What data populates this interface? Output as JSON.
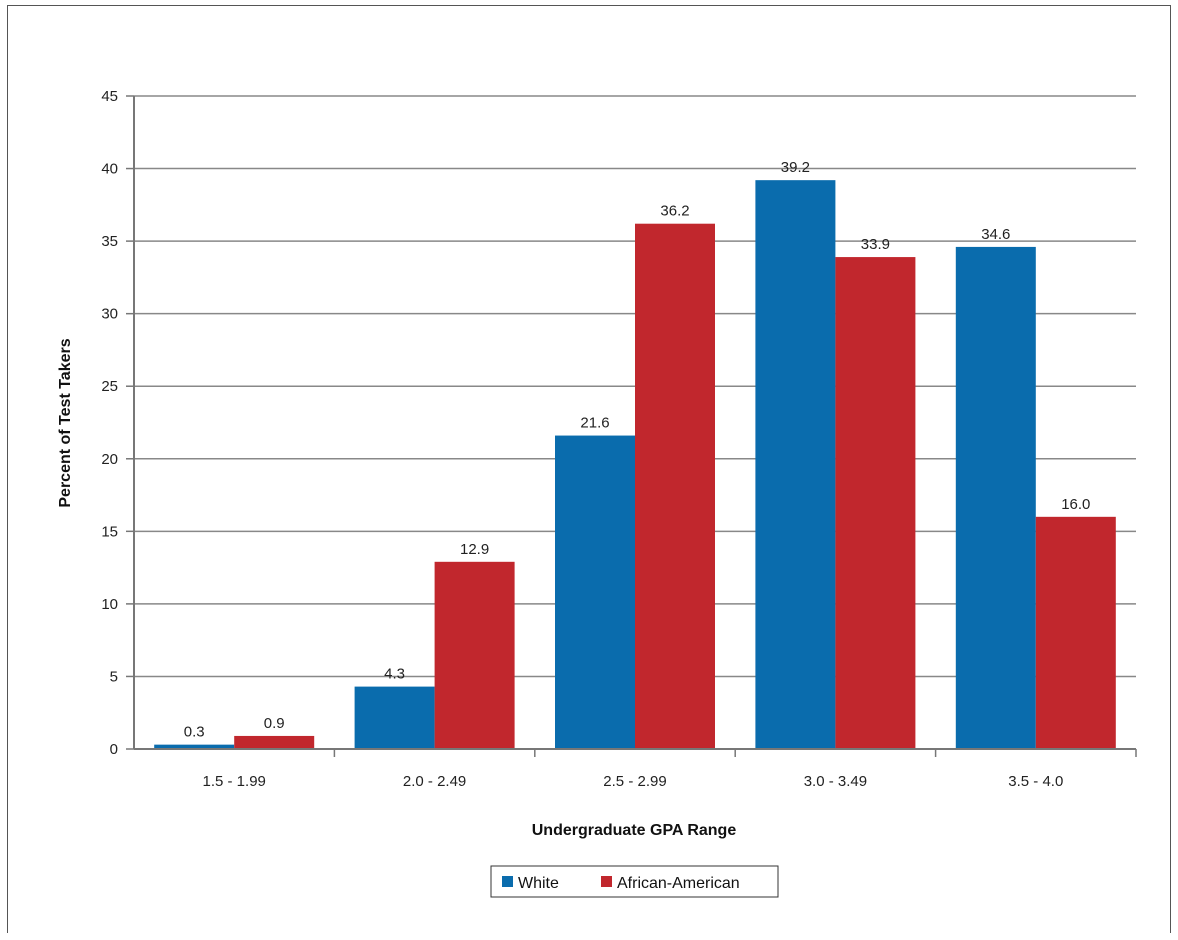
{
  "chart_data": {
    "type": "bar",
    "title": "",
    "xlabel": "Undergraduate GPA Range",
    "ylabel": "Percent of Test Takers",
    "categories": [
      "1.5 - 1.99",
      "2.0 - 2.49",
      "2.5 - 2.99",
      "3.0 - 3.49",
      "3.5 - 4.0"
    ],
    "series": [
      {
        "name": "White",
        "color": "#0a6cad",
        "values": [
          0.3,
          4.3,
          21.6,
          39.2,
          34.6
        ],
        "labels": [
          "0.3",
          "4.3",
          "21.6",
          "39.2",
          "34.6"
        ]
      },
      {
        "name": "African-American",
        "color": "#c1272d",
        "values": [
          0.9,
          12.9,
          36.2,
          33.9,
          16.0
        ],
        "labels": [
          "0.9",
          "12.9",
          "36.2",
          "33.9",
          "16.0"
        ]
      }
    ],
    "ylim": [
      0,
      45
    ],
    "yticks": [
      0,
      5,
      10,
      15,
      20,
      25,
      30,
      35,
      40,
      45
    ],
    "grid": true,
    "legend_position": "bottom-center"
  }
}
